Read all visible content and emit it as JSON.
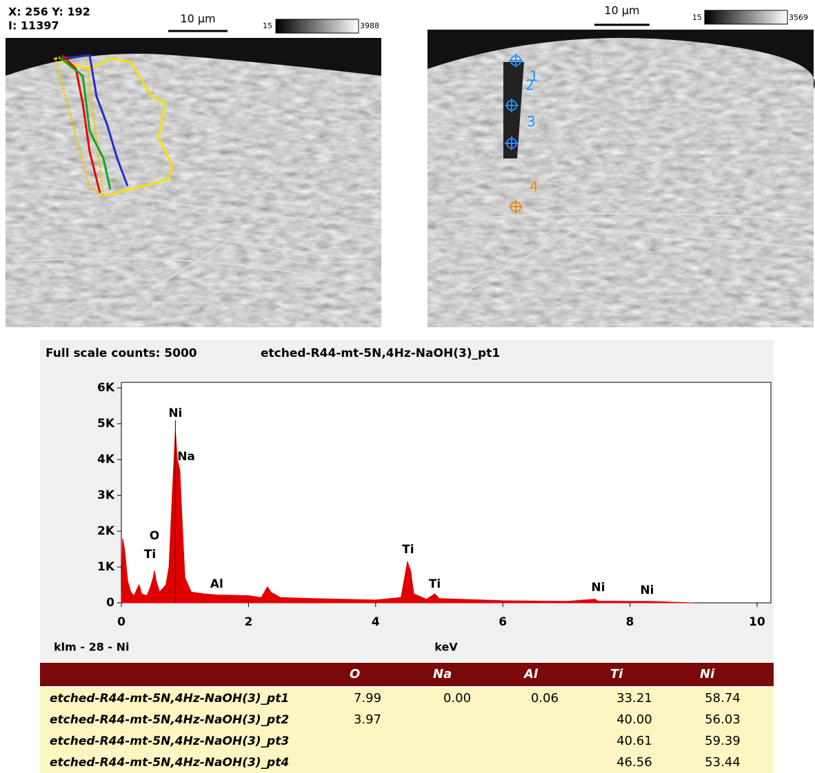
{
  "left_image": {
    "coords": "X: 256 Y: 192",
    "intensity": "I: 11397",
    "scale_bar": "10 µm",
    "range_min": "15",
    "range_max": "3988"
  },
  "right_image": {
    "scale_bar": "10 µm",
    "range_min": "15",
    "range_max": "3569",
    "points": [
      "1",
      "2",
      "3",
      "4"
    ]
  },
  "chart_data": {
    "type": "area",
    "title": "etched-R44-mt-5N,4Hz-NaOH(3)_pt1",
    "subtitle": "Full scale counts: 5000",
    "footer": "klm - 28 - Ni",
    "xlabel": "keV",
    "color": "#e00000",
    "x": [
      0,
      0.02,
      0.05,
      0.1,
      0.15,
      0.2,
      0.25,
      0.28,
      0.32,
      0.4,
      0.45,
      0.5,
      0.52,
      0.55,
      0.6,
      0.7,
      0.75,
      0.8,
      0.85,
      0.88,
      0.92,
      0.95,
      1.0,
      1.1,
      1.3,
      1.5,
      2.0,
      2.2,
      2.3,
      2.35,
      2.5,
      3,
      4,
      4.4,
      4.5,
      4.55,
      4.6,
      4.8,
      4.93,
      5.0,
      6,
      7,
      7.45,
      7.5,
      8,
      8.3,
      9
    ],
    "values": [
      0,
      1800,
      1500,
      600,
      300,
      200,
      400,
      500,
      250,
      200,
      400,
      700,
      900,
      600,
      300,
      500,
      1000,
      3000,
      4800,
      4000,
      3700,
      2500,
      700,
      300,
      250,
      220,
      200,
      150,
      450,
      300,
      150,
      120,
      80,
      150,
      1150,
      900,
      250,
      100,
      250,
      120,
      60,
      40,
      100,
      50,
      40,
      40,
      0
    ],
    "xlim": [
      0,
      10
    ],
    "xticks": [
      0,
      2,
      4,
      6,
      8,
      10
    ],
    "ylim": [
      0,
      6000
    ],
    "yticks": [
      0,
      {
        "value": 1000,
        "label": "1K"
      },
      {
        "value": 2000,
        "label": "2K"
      },
      {
        "value": 3000,
        "label": "3K"
      },
      {
        "value": 4000,
        "label": "4K"
      },
      {
        "value": 5000,
        "label": "5K"
      },
      {
        "value": 6000,
        "label": "6K"
      }
    ],
    "annotations": [
      {
        "text": "Ni",
        "x": 0.85,
        "y": 5290
      },
      {
        "text": "Na",
        "x": 1.02,
        "y": 4080
      },
      {
        "text": "O",
        "x": 0.52,
        "y": 1865
      },
      {
        "text": "Ti",
        "x": 0.45,
        "y": 1350
      },
      {
        "text": "Al",
        "x": 1.5,
        "y": 520
      },
      {
        "text": "Ti",
        "x": 4.51,
        "y": 1480
      },
      {
        "text": "Ti",
        "x": 4.93,
        "y": 520
      },
      {
        "text": "Ni",
        "x": 7.5,
        "y": 420
      },
      {
        "text": "Ni",
        "x": 8.27,
        "y": 350
      }
    ]
  },
  "table": {
    "header": [
      "O",
      "Na",
      "Al",
      "Ti",
      "Ni"
    ],
    "rows": [
      [
        "etched-R44-mt-5N,4Hz-NaOH(3)_pt1",
        "7.99",
        "0.00",
        "0.06",
        "33.21",
        "58.74"
      ],
      [
        "etched-R44-mt-5N,4Hz-NaOH(3)_pt2",
        "3.97",
        null,
        null,
        "40.00",
        "56.03"
      ],
      [
        "etched-R44-mt-5N,4Hz-NaOH(3)_pt3",
        null,
        null,
        null,
        "40.61",
        "59.39"
      ],
      [
        "etched-R44-mt-5N,4Hz-NaOH(3)_pt4",
        null,
        null,
        null,
        "46.56",
        "53.44"
      ]
    ]
  }
}
